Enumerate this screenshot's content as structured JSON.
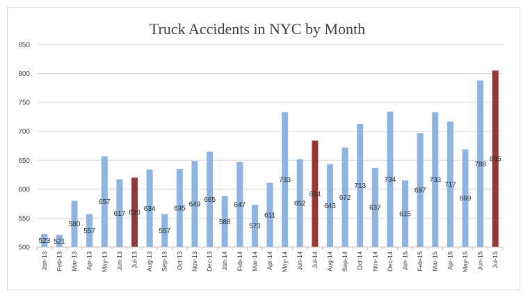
{
  "chart_data": {
    "type": "bar",
    "title": "Truck Accidents in NYC by Month",
    "xlabel": "",
    "ylabel": "",
    "ylim": [
      500,
      850
    ],
    "yticks": [
      500,
      550,
      600,
      650,
      700,
      750,
      800,
      850
    ],
    "grid": true,
    "legend": "none",
    "categories": [
      "Jan-13",
      "Feb-13",
      "Mar-13",
      "Apr-13",
      "May-13",
      "Jun-13",
      "Jul-13",
      "Aug-13",
      "Sep-13",
      "Oct-13",
      "Nov-13",
      "Dec-13",
      "Jan-14",
      "Feb-14",
      "Mar-14",
      "Apr-14",
      "May-14",
      "Jun-14",
      "Jul-14",
      "Aug-14",
      "Sep-14",
      "Oct-14",
      "Nov-14",
      "Dec-14",
      "Jan-15",
      "Feb-15",
      "Mar-15",
      "Apr-15",
      "May-15",
      "Jun-15",
      "Jul-15"
    ],
    "values": [
      523,
      521,
      580,
      557,
      657,
      617,
      620,
      634,
      557,
      635,
      649,
      665,
      588,
      647,
      573,
      611,
      733,
      652,
      684,
      643,
      672,
      713,
      637,
      734,
      615,
      697,
      733,
      717,
      669,
      788,
      805
    ],
    "data_labels": [
      "523",
      "521",
      "580",
      "557",
      "657",
      "617",
      "620",
      "634",
      "557",
      "635",
      "649",
      "665",
      "588",
      "647",
      "573",
      "611",
      "733",
      "652",
      "684",
      "643",
      "672",
      "713",
      "637",
      "734",
      "615",
      "697",
      "733",
      "717",
      "669",
      "788",
      "805"
    ],
    "highlight_categories": [
      "Jul-13",
      "Jul-14",
      "Jul-15"
    ],
    "colors": {
      "bar": "#8db4e2",
      "highlight": "#953735"
    }
  }
}
